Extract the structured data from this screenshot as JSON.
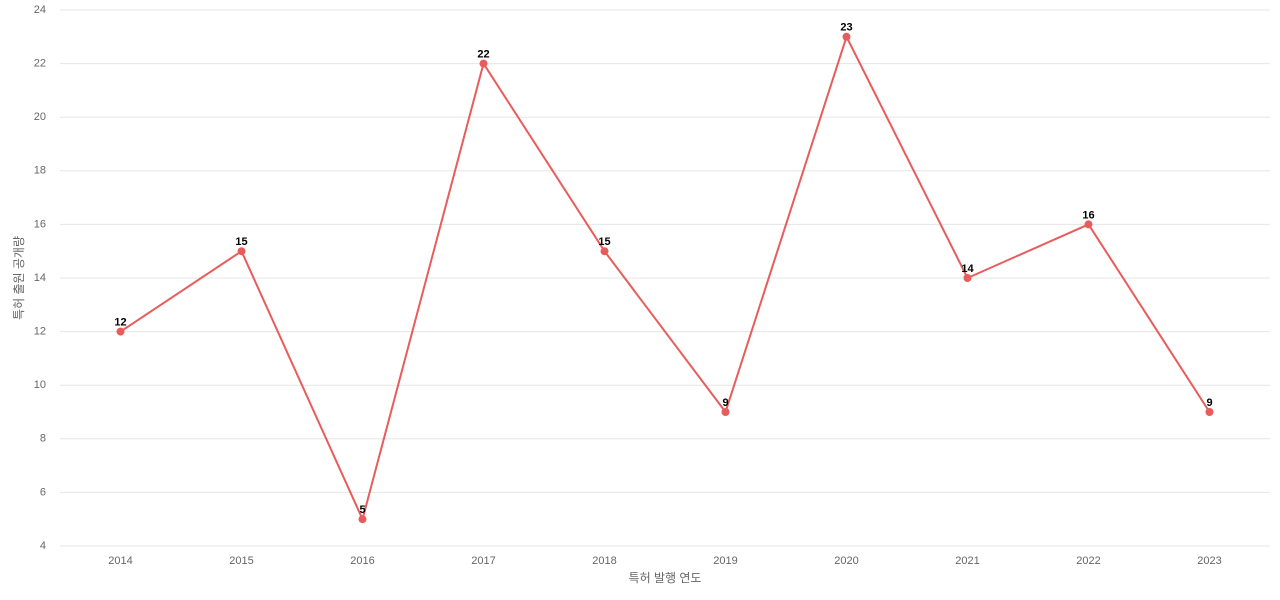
{
  "chart_data": {
    "type": "line",
    "x_label": "특허 발행 연도",
    "y_label": "특허 출원 공개량",
    "categories": [
      "2014",
      "2015",
      "2016",
      "2017",
      "2018",
      "2019",
      "2020",
      "2021",
      "2022",
      "2023"
    ],
    "series": [
      {
        "color": "#e85c5c",
        "values": [
          12,
          15,
          5,
          22,
          15,
          9,
          23,
          14,
          16,
          9
        ]
      }
    ],
    "ylim": [
      4,
      24
    ],
    "yticks": [
      4,
      6,
      8,
      10,
      12,
      14,
      16,
      18,
      20,
      22,
      24
    ],
    "grid": true
  }
}
